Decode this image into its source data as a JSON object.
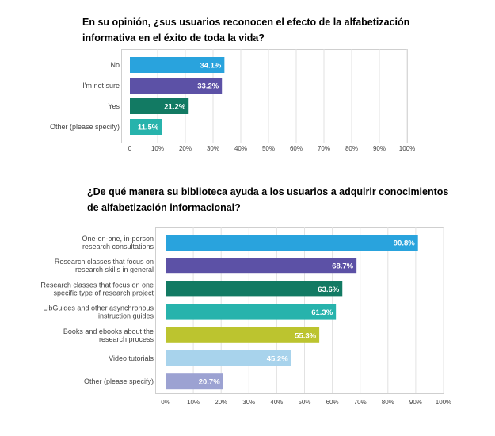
{
  "chart_data": [
    {
      "type": "bar",
      "orientation": "horizontal",
      "title": "En su opinión, ¿sus usuarios reconocen el efecto de la alfabetización informativa en el éxito de toda la vida?",
      "categories": [
        [
          "No"
        ],
        [
          "I'm not sure"
        ],
        [
          "Yes"
        ],
        [
          "Other (please specify)"
        ]
      ],
      "values": [
        34.1,
        33.2,
        21.2,
        11.5
      ],
      "value_labels": [
        "34.1%",
        "33.2%",
        "21.2%",
        "11.5%"
      ],
      "colors": [
        "#29a3dd",
        "#5c51a6",
        "#127a63",
        "#27b3ac"
      ],
      "ticks": [
        "0",
        "10%",
        "20%",
        "30%",
        "40%",
        "50%",
        "60%",
        "70%",
        "80%",
        "90%",
        "100%"
      ],
      "xlim": [
        0,
        100
      ]
    },
    {
      "type": "bar",
      "orientation": "horizontal",
      "title": "¿De qué manera su biblioteca ayuda a los usuarios a adquirir conocimientos de alfabetización informacional?",
      "categories": [
        [
          "One-on-one, in-person",
          "research consultations"
        ],
        [
          "Research classes that focus on",
          "research skills in general"
        ],
        [
          "Research classes that focus on one",
          "specific type of research project"
        ],
        [
          "LibGuides and other asynchronous",
          "instruction guides"
        ],
        [
          "Books and ebooks about the",
          "research process"
        ],
        [
          "Video tutorials"
        ],
        [
          "Other (please specify)"
        ]
      ],
      "values": [
        90.8,
        68.7,
        63.6,
        61.3,
        55.3,
        45.2,
        20.7
      ],
      "value_labels": [
        "90.8%",
        "68.7%",
        "63.6%",
        "61.3%",
        "55.3%",
        "45.2%",
        "20.7%"
      ],
      "colors": [
        "#29a3dd",
        "#5c51a6",
        "#127a63",
        "#27b3ac",
        "#bcc42f",
        "#a8d3ec",
        "#9ca2d2"
      ],
      "ticks": [
        "0%",
        "10%",
        "20%",
        "30%",
        "40%",
        "50%",
        "60%",
        "70%",
        "80%",
        "90%",
        "100%"
      ],
      "xlim": [
        0,
        100
      ]
    }
  ]
}
